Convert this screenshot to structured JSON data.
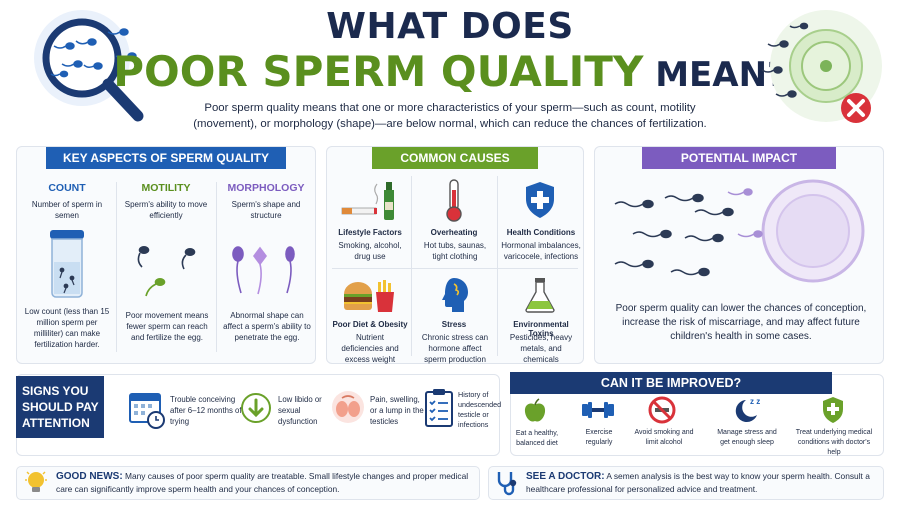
{
  "header": {
    "line1": "WHAT DOES",
    "line2_green": "POOR SPERM QUALITY",
    "line2_dark": " MEAN?",
    "intro": "Poor sperm quality means that one or more characteristics of your sperm—such as count, motility (movement), or morphology (shape)—are below normal, which can reduce the chances of fertilization."
  },
  "aspects": {
    "title": "KEY ASPECTS OF SPERM QUALITY",
    "columns": [
      {
        "heading": "COUNT",
        "def": "Number of sperm in semen",
        "detail": "Low count (less than 15 million sperm per milliliter) can make fertilization harder."
      },
      {
        "heading": "MOTILITY",
        "def": "Sperm's ability to move efficiently",
        "detail": "Poor movement means fewer sperm can reach and fertilize the egg."
      },
      {
        "heading": "MORPHOLOGY",
        "def": "Sperm's shape and structure",
        "detail": "Abnormal shape can affect a sperm's ability to penetrate the egg."
      }
    ]
  },
  "causes": {
    "title": "COMMON CAUSES",
    "items": [
      {
        "title": "Lifestyle Factors",
        "desc": "Smoking, alcohol, drug use"
      },
      {
        "title": "Overheating",
        "desc": "Hot tubs, saunas, tight clothing"
      },
      {
        "title": "Health Conditions",
        "desc": "Hormonal imbalances, varicocele, infections"
      },
      {
        "title": "Poor Diet & Obesity",
        "desc": "Nutrient deficiencies and excess weight"
      },
      {
        "title": "Stress",
        "desc": "Chronic stress can hormone affect sperm production"
      },
      {
        "title": "Environmental Toxins",
        "desc": "Pesticides, heavy metals, and chemicals"
      }
    ]
  },
  "impact": {
    "title": "POTENTIAL IMPACT",
    "text": "Poor sperm quality can lower the chances of conception, increase the risk of miscarriage, and may affect future children's health in some cases."
  },
  "signs": {
    "title_line1": "SIGNS YOU",
    "title_line2": "SHOULD PAY",
    "title_line3": "ATTENTION",
    "items": [
      {
        "text": "Trouble conceiving after 6–12 months of trying",
        "icon": "calendar-icon"
      },
      {
        "text": "Low libido or sexual dysfunction",
        "icon": "down-arrow-icon"
      },
      {
        "text": "Pain, swelling, or a lump in the testicles",
        "icon": "testicles-icon"
      },
      {
        "text": "History of undescended testicle or infections",
        "icon": "checklist-icon"
      }
    ]
  },
  "improve": {
    "title": "CAN IT BE IMPROVED?",
    "items": [
      {
        "text": "Eat a healthy, balanced diet",
        "icon": "apple-icon"
      },
      {
        "text": "Exercise regularly",
        "icon": "dumbbell-icon"
      },
      {
        "text": "Avoid smoking and limit alcohol",
        "icon": "no-smoking-icon"
      },
      {
        "text": "Manage stress and get enough sleep",
        "icon": "sleep-icon"
      },
      {
        "text": "Treat underlying medical conditions with doctor's help",
        "icon": "shield-icon"
      }
    ]
  },
  "good_news": {
    "label": "GOOD NEWS:",
    "text": " Many causes of poor sperm quality are treatable. Small lifestyle changes and proper medical care can significantly improve sperm health and your chances of conception."
  },
  "doctor": {
    "label": "SEE A DOCTOR:",
    "text": " A semen analysis is the best way to know your sperm health. Consult a healthcare professional for personalized advice and treatment."
  },
  "colors": {
    "navy": "#1b2a4e",
    "blue": "#1f5fb4",
    "green": "#6aa12a",
    "purple": "#7c5cbf",
    "red": "#d9323a"
  }
}
